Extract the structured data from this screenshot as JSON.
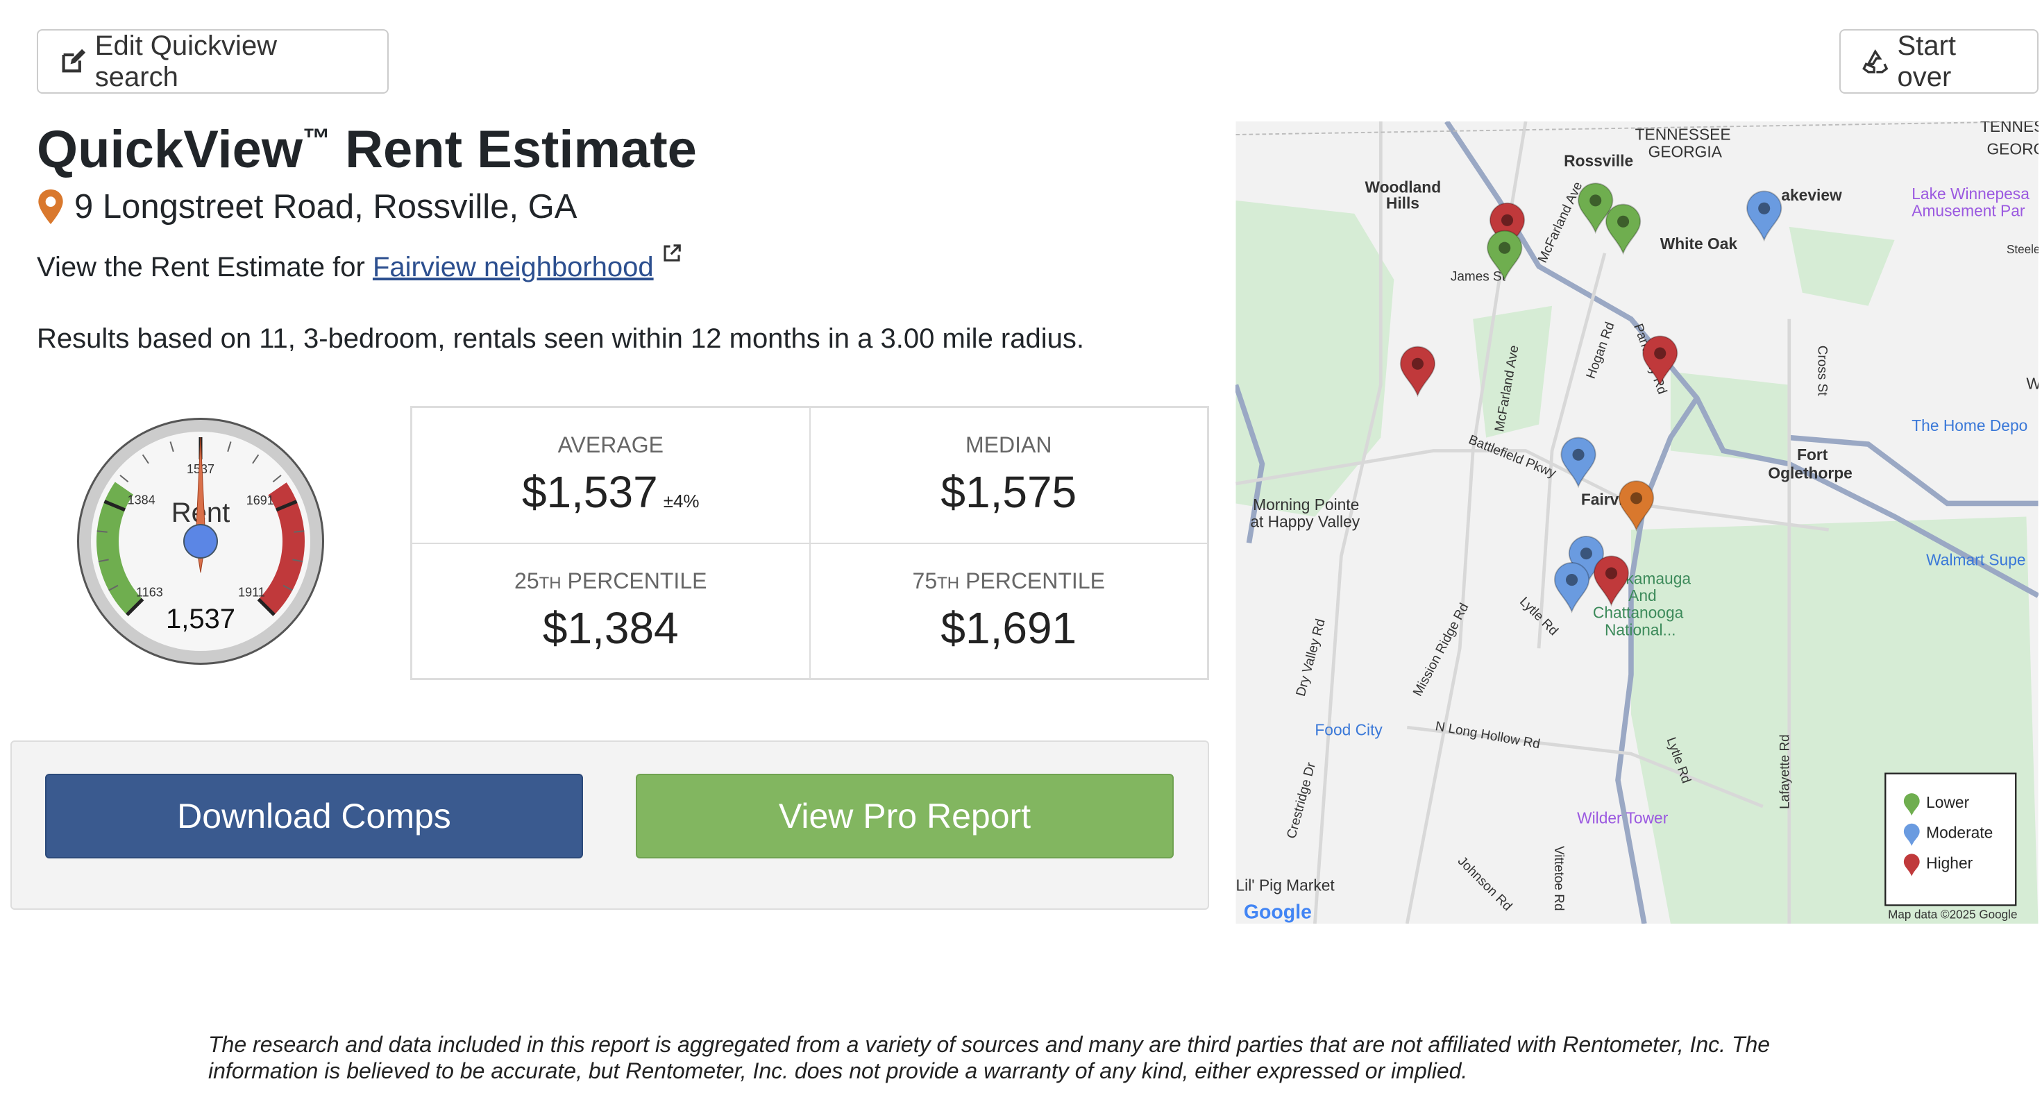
{
  "header": {
    "edit_label": "Edit Quickview search",
    "start_over_label": "Start over"
  },
  "title": {
    "main": "QuickView",
    "tm": "™",
    "rest": " Rent Estimate"
  },
  "address": "9 Longstreet Road, Rossville, GA",
  "neighborhood": {
    "prefix": "View the Rent Estimate for ",
    "link": "Fairview neighborhood"
  },
  "results_text": "Results based on 11, 3-bedroom, rentals seen within 12 months in a 3.00 mile radius.",
  "gauge": {
    "label": "Rent",
    "value": 1537,
    "value_text": "1,537",
    "min": 1163,
    "max": 1911,
    "ticks": [
      "1163",
      "1384",
      "1537",
      "1691",
      "1911"
    ],
    "green_range": [
      1163,
      1384
    ],
    "red_range": [
      1691,
      1911
    ],
    "colors": {
      "green": "#6fae4f",
      "red": "#c0393b",
      "needle": "#d9704a",
      "hub": "#5b86e5"
    }
  },
  "stats": {
    "average": {
      "label": "Average",
      "value": "$1,537",
      "pm": "±4%"
    },
    "median": {
      "label": "Median",
      "value": "$1,575"
    },
    "p25": {
      "num": "25",
      "sup": "TH",
      "label": " Percentile",
      "value": "$1,384"
    },
    "p75": {
      "num": "75",
      "sup": "TH",
      "label": " Percentile",
      "value": "$1,691"
    }
  },
  "actions": {
    "download": "Download Comps",
    "pro": "View Pro Report"
  },
  "map": {
    "labels": [
      "TENNESSEE",
      "GEORGIA",
      "Rossville",
      "Woodland",
      "Hills",
      "James St",
      "McFarland Ave",
      "akeview",
      "White Oak",
      "Lake Winnepesa",
      "Amusement Par",
      "Hogan Rd",
      "Park City Rd",
      "McFarland Ave",
      "Cross St",
      "Battlefield Pkwy",
      "Fort",
      "Oglethorpe",
      "The Home Depo",
      "Fairvi",
      "Morning Pointe",
      "at Happy Valley",
      "kamauga",
      "And",
      "Chattanooga",
      "National...",
      "Walmart Supe",
      "Lytle Rd",
      "Mission Ridge Rd",
      "Dry Valley Rd",
      "Food City",
      "N Long Hollow Rd",
      "Lytle Rd",
      "Lafayette Rd",
      "Wilder Tower",
      "Crestridge Dr",
      "Johnson Rd",
      "Vittetoe Rd",
      "Lil' Pig Market",
      "Steele",
      "TENNES",
      "GEORG",
      "W"
    ],
    "legend": [
      {
        "label": "Lower",
        "color": "#6fae4f"
      },
      {
        "label": "Moderate",
        "color": "#6a9be0"
      },
      {
        "label": "Higher",
        "color": "#c0393b"
      }
    ],
    "subject_color": "#d9782d",
    "attribution": "Map data ©2025 Google",
    "logo": "Google"
  },
  "disclaimer": "The research and data included in this report is aggregated from a variety of sources and many are third parties that are not affiliated with Rentometer, Inc. The information is believed to be accurate, but Rentometer, Inc. does not provide a warranty of any kind, either expressed or implied."
}
